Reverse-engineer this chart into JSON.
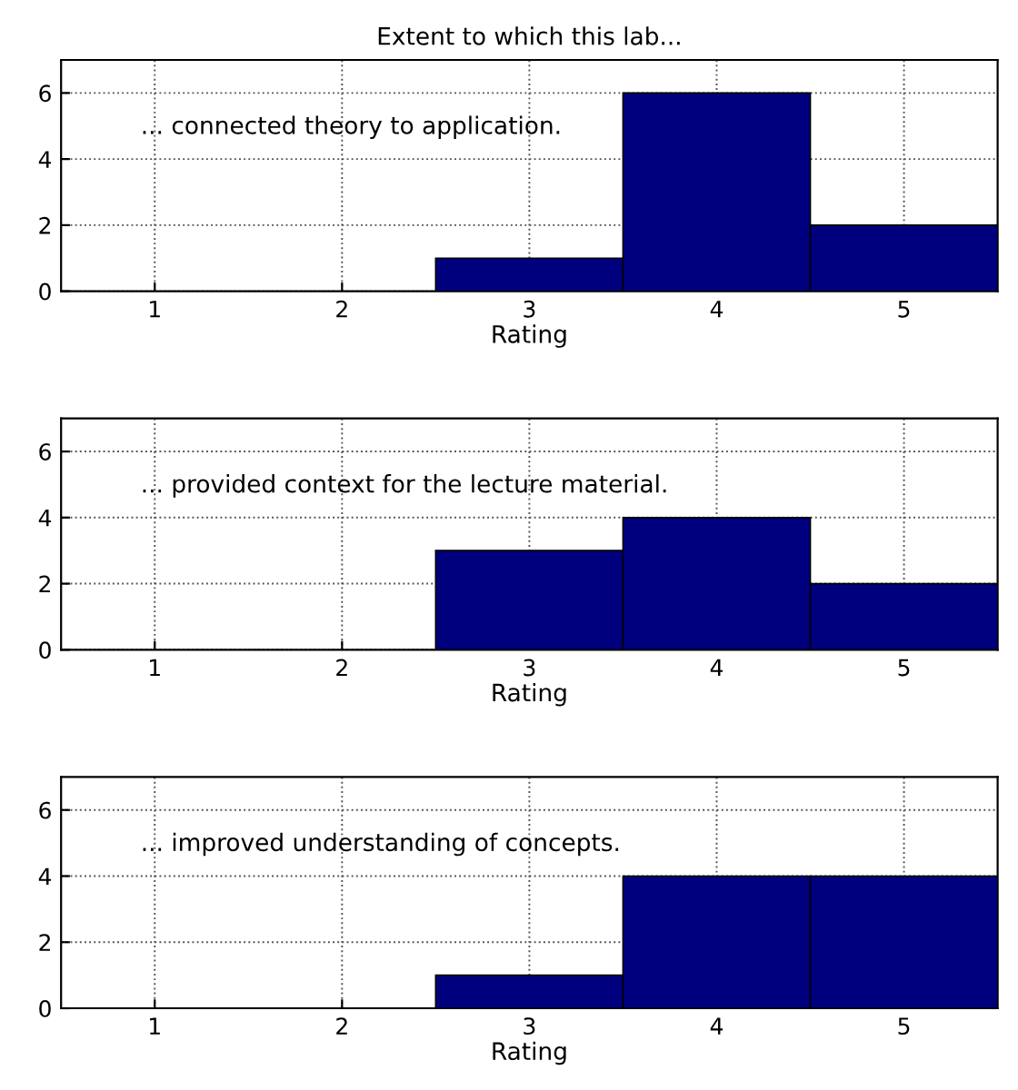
{
  "chart_data": [
    {
      "type": "bar",
      "title": "Extent to which this lab...",
      "xlabel": "Rating",
      "categories": [
        "1",
        "2",
        "3",
        "4",
        "5"
      ],
      "values": [
        0,
        0,
        1,
        6,
        2
      ],
      "color": "#00007f",
      "ylim": [
        0,
        7
      ],
      "yticks": [
        0,
        2,
        4,
        6
      ],
      "grid": true,
      "annotations": [
        "... connected theory to application."
      ]
    },
    {
      "type": "bar",
      "xlabel": "Rating",
      "categories": [
        "1",
        "2",
        "3",
        "4",
        "5"
      ],
      "values": [
        0,
        0,
        3,
        4,
        2
      ],
      "color": "#00007f",
      "ylim": [
        0,
        7
      ],
      "yticks": [
        0,
        2,
        4,
        6
      ],
      "grid": true,
      "annotations": [
        "... provided context for the lecture material."
      ]
    },
    {
      "type": "bar",
      "xlabel": "Rating",
      "categories": [
        "1",
        "2",
        "3",
        "4",
        "5"
      ],
      "values": [
        0,
        0,
        1,
        4,
        4
      ],
      "color": "#00007f",
      "ylim": [
        0,
        7
      ],
      "yticks": [
        0,
        2,
        4,
        6
      ],
      "grid": true,
      "annotations": [
        "... improved understanding of concepts."
      ]
    }
  ]
}
